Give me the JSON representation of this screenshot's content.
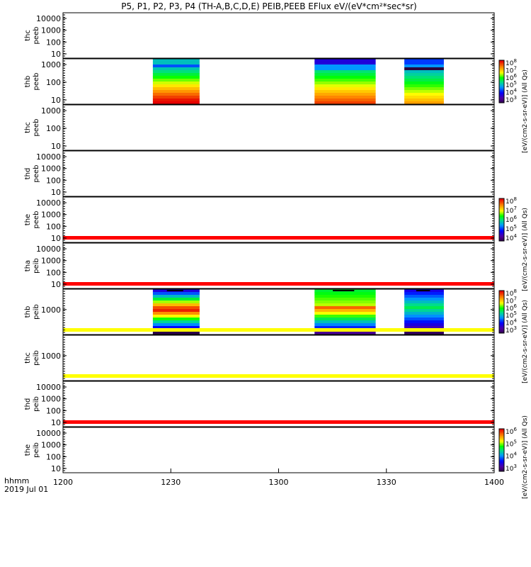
{
  "title": "P5, P1, P2, P3, P4 (TH-A,B,C,D,E) PEIB,PEEB EFlux eV/(eV*cm²*sec*sr)",
  "chart_data": {
    "type": "heatmap",
    "x_axis": {
      "ticks": [
        "1200",
        "1230",
        "1300",
        "1330",
        "1400"
      ],
      "time_label_line1": "hhmm",
      "time_label_line2": "2019 Jul 01",
      "range": [
        "12:00",
        "14:00"
      ]
    },
    "panels": [
      {
        "name": "thc peeb",
        "line1": "thc",
        "line2": "peeb",
        "yscale": "log",
        "yticks": [
          "10",
          "100",
          "1000",
          "10000"
        ],
        "bursts": [],
        "flag_lines": []
      },
      {
        "name": "thb peeb",
        "line1": "thb",
        "line2": "peeb",
        "yscale": "log",
        "yticks": [
          "10",
          "100",
          "1000"
        ],
        "bursts": [
          {
            "start": "12:25",
            "end": "12:38",
            "profile": "peeb_a"
          },
          {
            "start": "13:10",
            "end": "13:27",
            "profile": "peeb_b"
          },
          {
            "start": "13:35",
            "end": "13:46",
            "profile": "peeb_c"
          }
        ],
        "flag_lines": []
      },
      {
        "name": "thc peeb",
        "line1": "thc",
        "line2": "peeb",
        "yscale": "log",
        "yticks": [
          "10",
          "100",
          "1000"
        ],
        "bursts": [],
        "flag_lines": []
      },
      {
        "name": "thd peeb",
        "line1": "thd",
        "line2": "peeb",
        "yscale": "log",
        "yticks": [
          "10",
          "100",
          "1000",
          "10000"
        ],
        "bursts": [],
        "flag_lines": []
      },
      {
        "name": "the peeb",
        "line1": "the",
        "line2": "peeb",
        "yscale": "log",
        "yticks": [
          "10",
          "100",
          "1000",
          "10000"
        ],
        "bursts": [],
        "flag_lines": [
          "red"
        ]
      },
      {
        "name": "tha peib",
        "line1": "tha",
        "line2": "peib",
        "yscale": "log",
        "yticks": [
          "10",
          "100",
          "1000",
          "10000"
        ],
        "bursts": [],
        "flag_lines": [
          "red"
        ]
      },
      {
        "name": "thb peib",
        "line1": "thb",
        "line2": "peib",
        "yscale": "log",
        "yticks": [
          "1000"
        ],
        "bursts": [
          {
            "start": "12:25",
            "end": "12:38",
            "profile": "peib_a"
          },
          {
            "start": "13:10",
            "end": "13:27",
            "profile": "peib_b"
          },
          {
            "start": "13:35",
            "end": "13:46",
            "profile": "peib_c"
          }
        ],
        "flag_lines": [
          "yellow"
        ]
      },
      {
        "name": "thc peib",
        "line1": "thc",
        "line2": "peib",
        "yscale": "log",
        "yticks": [
          "1000"
        ],
        "bursts": [],
        "flag_lines": [
          "yellow"
        ]
      },
      {
        "name": "thd peib",
        "line1": "thd",
        "line2": "peib",
        "yscale": "log",
        "yticks": [
          "10",
          "100",
          "1000",
          "10000"
        ],
        "bursts": [],
        "flag_lines": [
          "red"
        ]
      },
      {
        "name": "the peib",
        "line1": "the",
        "line2": "peib",
        "yscale": "log",
        "yticks": [
          "10",
          "100",
          "1000",
          "10000"
        ],
        "bursts": [],
        "flag_lines": []
      }
    ],
    "colorbars": [
      {
        "label": "[eV/(cm2-s-sr-eV)] (All Qs)",
        "ticks": [
          "10^3",
          "10^4",
          "10^5",
          "10^6",
          "10^7",
          "10^8"
        ],
        "span_panels": [
          1,
          2
        ]
      },
      {
        "label": "[eV/(cm2-s-sr-eV)] (All Qs)",
        "ticks": [
          "10^4",
          "10^5",
          "10^6",
          "10^7",
          "10^8"
        ],
        "span_panels": [
          4,
          5
        ]
      },
      {
        "label": "[eV/(cm2-s-sr-eV)] (All Qs)",
        "ticks": [
          "10^3",
          "10^4",
          "10^5",
          "10^6",
          "10^7",
          "10^8"
        ],
        "span_panels": [
          6,
          7
        ]
      },
      {
        "label": "[eV/(cm2-s-sr-eV)] (All Qs)",
        "ticks": [
          "10^3",
          "10^4",
          "10^5",
          "10^6"
        ],
        "span_panels": [
          9,
          9
        ]
      }
    ],
    "flag_colors": {
      "red": "#ff0000",
      "yellow": "#ffff00"
    },
    "grid": false,
    "legend": "none"
  }
}
